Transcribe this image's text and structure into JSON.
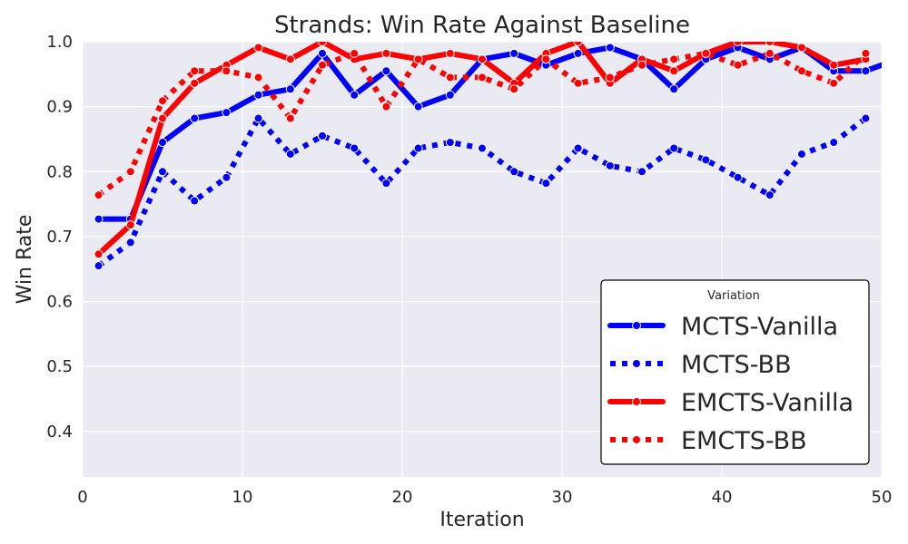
{
  "chart_data": {
    "type": "line",
    "title": "Strands: Win Rate Against Baseline",
    "xlabel": "Iteration",
    "ylabel": "Win Rate",
    "xlim": [
      0,
      50
    ],
    "ylim": [
      0.33,
      1.0
    ],
    "xticks": [
      0,
      10,
      20,
      30,
      40,
      50
    ],
    "yticks": [
      0.4,
      0.5,
      0.6,
      0.7,
      0.8,
      0.9,
      1.0
    ],
    "grid": true,
    "legend": {
      "title": "Variation",
      "position": "bottom-right"
    },
    "series": [
      {
        "name": "MCTS-Vanilla",
        "color": "#0000ff",
        "style": "solid",
        "x": [
          1,
          3,
          5,
          7,
          9,
          11,
          13,
          15,
          17,
          19,
          21,
          23,
          25,
          27,
          29,
          31,
          33,
          35,
          37,
          39,
          41,
          43,
          45,
          47,
          49,
          51
        ],
        "y": [
          0.727,
          0.727,
          0.845,
          0.882,
          0.891,
          0.918,
          0.927,
          0.982,
          0.918,
          0.955,
          0.9,
          0.918,
          0.973,
          0.982,
          0.964,
          0.982,
          0.991,
          0.973,
          0.927,
          0.973,
          0.991,
          0.973,
          0.991,
          0.955,
          0.955,
          0.973
        ]
      },
      {
        "name": "MCTS-BB",
        "color": "#0000ff",
        "style": "dotted",
        "x": [
          1,
          3,
          5,
          7,
          9,
          11,
          13,
          15,
          17,
          19,
          21,
          23,
          25,
          27,
          29,
          31,
          33,
          35,
          37,
          39,
          41,
          43,
          45,
          47,
          49
        ],
        "y": [
          0.655,
          0.691,
          0.8,
          0.755,
          0.791,
          0.882,
          0.827,
          0.855,
          0.836,
          0.782,
          0.836,
          0.845,
          0.836,
          0.8,
          0.782,
          0.836,
          0.809,
          0.8,
          0.836,
          0.818,
          0.791,
          0.764,
          0.827,
          0.845,
          0.882
        ]
      },
      {
        "name": "EMCTS-Vanilla",
        "color": "#ff0000",
        "style": "solid",
        "x": [
          1,
          3,
          5,
          7,
          9,
          11,
          13,
          15,
          17,
          19,
          21,
          23,
          25,
          27,
          29,
          31,
          33,
          35,
          37,
          39,
          41,
          43,
          45,
          47,
          49
        ],
        "y": [
          0.673,
          0.718,
          0.882,
          0.936,
          0.964,
          0.991,
          0.973,
          1.0,
          0.973,
          0.982,
          0.973,
          0.982,
          0.973,
          0.936,
          0.982,
          1.0,
          0.936,
          0.973,
          0.955,
          0.982,
          1.0,
          1.0,
          0.991,
          0.964,
          0.973
        ]
      },
      {
        "name": "EMCTS-BB",
        "color": "#ff0000",
        "style": "dotted",
        "x": [
          1,
          3,
          5,
          7,
          9,
          11,
          13,
          15,
          17,
          19,
          21,
          23,
          25,
          27,
          29,
          31,
          33,
          35,
          37,
          39,
          41,
          43,
          45,
          47,
          49
        ],
        "y": [
          0.764,
          0.8,
          0.909,
          0.955,
          0.955,
          0.945,
          0.882,
          0.964,
          0.982,
          0.9,
          0.973,
          0.945,
          0.945,
          0.927,
          0.973,
          0.936,
          0.945,
          0.964,
          0.973,
          0.982,
          0.964,
          0.982,
          0.955,
          0.936,
          0.982
        ]
      }
    ]
  }
}
